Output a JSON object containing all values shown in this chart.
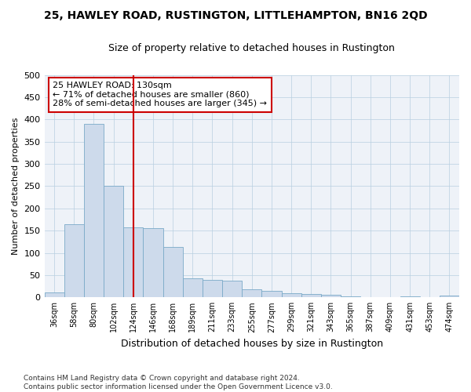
{
  "title": "25, HAWLEY ROAD, RUSTINGTON, LITTLEHAMPTON, BN16 2QD",
  "subtitle": "Size of property relative to detached houses in Rustington",
  "xlabel": "Distribution of detached houses by size in Rustington",
  "ylabel": "Number of detached properties",
  "bar_color": "#cddaeb",
  "bar_edge_color": "#7aaac8",
  "grid_color": "#b8cfe0",
  "annotation_box_color": "#cc0000",
  "vline_color": "#cc0000",
  "categories": [
    "36sqm",
    "58sqm",
    "80sqm",
    "102sqm",
    "124sqm",
    "146sqm",
    "168sqm",
    "189sqm",
    "211sqm",
    "233sqm",
    "255sqm",
    "277sqm",
    "299sqm",
    "321sqm",
    "343sqm",
    "365sqm",
    "387sqm",
    "409sqm",
    "431sqm",
    "453sqm",
    "474sqm"
  ],
  "values": [
    11,
    165,
    390,
    250,
    157,
    155,
    113,
    42,
    40,
    38,
    18,
    14,
    9,
    7,
    5,
    3,
    0,
    0,
    2,
    0,
    4
  ],
  "vline_x": 4.0,
  "annotation_text": "25 HAWLEY ROAD: 130sqm\n← 71% of detached houses are smaller (860)\n28% of semi-detached houses are larger (345) →",
  "ylim": [
    0,
    500
  ],
  "yticks": [
    0,
    50,
    100,
    150,
    200,
    250,
    300,
    350,
    400,
    450,
    500
  ],
  "footnote": "Contains HM Land Registry data © Crown copyright and database right 2024.\nContains public sector information licensed under the Open Government Licence v3.0.",
  "background_color": "#eef2f8",
  "fig_background": "#ffffff"
}
